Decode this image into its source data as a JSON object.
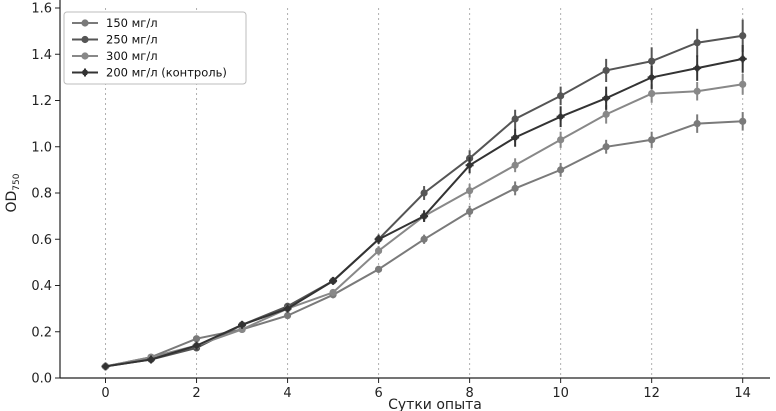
{
  "chart_data": {
    "type": "line",
    "title": "",
    "xlabel": "Сутки опыта",
    "ylabel_main": "OD",
    "ylabel_sub": "750",
    "xlim": [
      -1,
      14.6
    ],
    "ylim": [
      0,
      1.6
    ],
    "x_ticks": [
      0,
      2,
      4,
      6,
      8,
      10,
      12,
      14
    ],
    "y_ticks": [
      0.0,
      0.2,
      0.4,
      0.6,
      0.8,
      1.0,
      1.2,
      1.4,
      1.6
    ],
    "y_tick_labels": [
      "0.0",
      "0.2",
      "0.4",
      "0.6",
      "0.8",
      "1.0",
      "1.2",
      "1.4",
      "1.6"
    ],
    "grid": "vertical-dotted",
    "legend_position": "top-left",
    "x": [
      0,
      1,
      2,
      3,
      4,
      5,
      6,
      7,
      8,
      9,
      10,
      11,
      12,
      13,
      14
    ],
    "series": [
      {
        "name": "150 мг/л",
        "color": "#7a7a7a",
        "marker": "diamond",
        "values": [
          0.05,
          0.09,
          0.17,
          0.21,
          0.27,
          0.36,
          0.47,
          0.6,
          0.72,
          0.82,
          0.9,
          1.0,
          1.03,
          1.1,
          1.11
        ],
        "errors": [
          0.005,
          0.01,
          0.01,
          0.01,
          0.015,
          0.015,
          0.015,
          0.02,
          0.025,
          0.03,
          0.03,
          0.03,
          0.035,
          0.04,
          0.04
        ]
      },
      {
        "name": "250 мг/л",
        "color": "#555555",
        "marker": "diamond",
        "values": [
          0.05,
          0.08,
          0.13,
          0.23,
          0.31,
          0.42,
          0.6,
          0.8,
          0.95,
          1.12,
          1.22,
          1.33,
          1.37,
          1.45,
          1.48
        ],
        "errors": [
          0.005,
          0.01,
          0.01,
          0.01,
          0.015,
          0.015,
          0.02,
          0.03,
          0.035,
          0.04,
          0.04,
          0.05,
          0.06,
          0.06,
          0.07
        ]
      },
      {
        "name": "300 мг/л",
        "color": "#888888",
        "marker": "diamond",
        "values": [
          0.05,
          0.09,
          0.14,
          0.21,
          0.3,
          0.37,
          0.55,
          0.7,
          0.81,
          0.92,
          1.03,
          1.14,
          1.23,
          1.24,
          1.27
        ],
        "errors": [
          0.005,
          0.01,
          0.01,
          0.01,
          0.015,
          0.015,
          0.02,
          0.025,
          0.03,
          0.03,
          0.035,
          0.04,
          0.04,
          0.04,
          0.045
        ]
      },
      {
        "name": "200 мг/л (контроль)",
        "color": "#333333",
        "marker": "plus",
        "values": [
          0.05,
          0.08,
          0.14,
          0.23,
          0.3,
          0.42,
          0.6,
          0.7,
          0.92,
          1.04,
          1.13,
          1.21,
          1.3,
          1.34,
          1.38
        ],
        "errors": [
          0.005,
          0.01,
          0.01,
          0.01,
          0.015,
          0.015,
          0.02,
          0.025,
          0.035,
          0.04,
          0.045,
          0.05,
          0.05,
          0.055,
          0.06
        ]
      }
    ]
  }
}
